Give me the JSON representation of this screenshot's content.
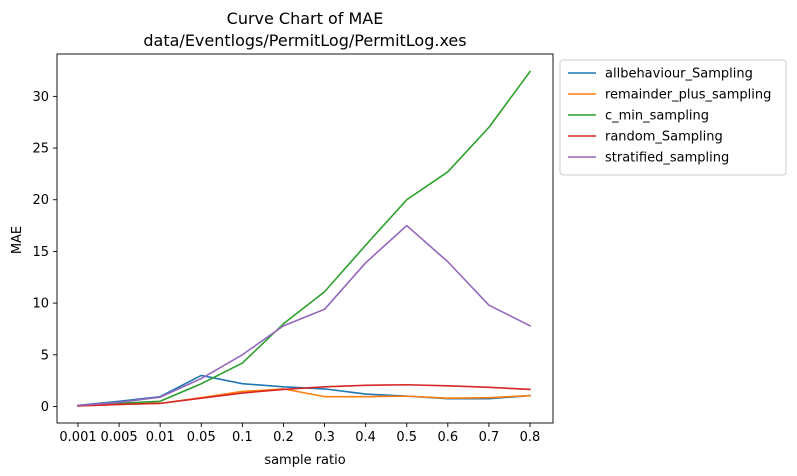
{
  "chart_data": {
    "type": "line",
    "title": "Curve Chart of MAE",
    "subtitle": "data/Eventlogs/PermitLog/PermitLog.xes",
    "xlabel": "sample ratio",
    "ylabel": "MAE",
    "categories": [
      "0.001",
      "0.005",
      "0.01",
      "0.05",
      "0.1",
      "0.2",
      "0.3",
      "0.4",
      "0.5",
      "0.6",
      "0.7",
      "0.8"
    ],
    "ylim": [
      -1.6,
      34.1
    ],
    "yticks": [
      0,
      5,
      10,
      15,
      20,
      25,
      30
    ],
    "grid": false,
    "legend_position": "outside-right",
    "series": [
      {
        "name": "allbehaviour_Sampling",
        "color": "#1f77b4",
        "values": [
          0.1,
          0.5,
          0.95,
          3.0,
          2.2,
          1.9,
          1.7,
          1.2,
          1.0,
          0.75,
          0.75,
          1.05
        ]
      },
      {
        "name": "remainder_plus_sampling",
        "color": "#ff7f0e",
        "values": [
          0.05,
          0.2,
          0.3,
          0.85,
          1.45,
          1.7,
          0.95,
          0.95,
          1.0,
          0.8,
          0.85,
          1.05
        ]
      },
      {
        "name": "c_min_sampling",
        "color": "#2ca02c",
        "values": [
          0.1,
          0.3,
          0.5,
          2.2,
          4.2,
          8.0,
          11.1,
          15.6,
          20.0,
          22.7,
          27.0,
          32.4
        ]
      },
      {
        "name": "random_Sampling",
        "color": "#d62728",
        "values": [
          0.05,
          0.2,
          0.3,
          0.8,
          1.3,
          1.65,
          1.9,
          2.05,
          2.1,
          2.0,
          1.85,
          1.65
        ]
      },
      {
        "name": "stratified_sampling",
        "color": "#9467bd",
        "values": [
          0.1,
          0.4,
          0.9,
          2.7,
          5.0,
          7.8,
          9.4,
          13.9,
          17.5,
          14.0,
          9.8,
          7.8
        ]
      }
    ]
  }
}
